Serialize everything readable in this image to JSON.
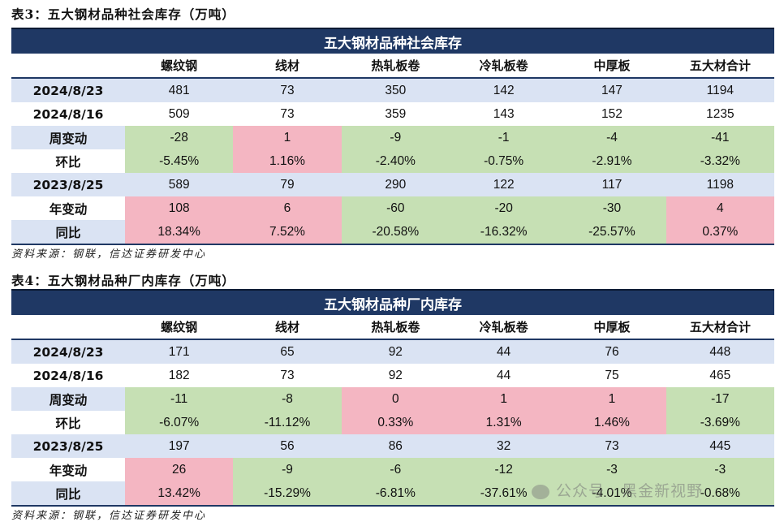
{
  "colors": {
    "header_bg": "#1f3864",
    "label_bg": "#dae3f3",
    "decrease_green": "#c6e0b4",
    "increase_pink": "#f4b6c2"
  },
  "tables": [
    {
      "caption": "表3：五大钢材品种社会库存（万吨）",
      "title": "五大钢材品种社会库存",
      "columns": [
        "",
        "螺纹钢",
        "线材",
        "热轧板卷",
        "冷轧板卷",
        "中厚板",
        "五大材合计"
      ],
      "rows": [
        {
          "label": "2024/8/23",
          "values": [
            "481",
            "73",
            "350",
            "142",
            "147",
            "1194"
          ],
          "colors": [
            "lav",
            "lav",
            "lav",
            "lav",
            "lav",
            "lav"
          ],
          "label_color": "lav"
        },
        {
          "label": "2024/8/16",
          "values": [
            "509",
            "73",
            "359",
            "143",
            "152",
            "1235"
          ],
          "colors": [
            "wht",
            "wht",
            "wht",
            "wht",
            "wht",
            "wht"
          ],
          "label_color": "wht"
        },
        {
          "label": "周变动",
          "values": [
            "-28",
            "1",
            "-9",
            "-1",
            "-4",
            "-41"
          ],
          "colors": [
            "grn",
            "pnk",
            "grn",
            "grn",
            "grn",
            "grn"
          ],
          "label_color": "lav"
        },
        {
          "label": "环比",
          "values": [
            "-5.45%",
            "1.16%",
            "-2.40%",
            "-0.75%",
            "-2.91%",
            "-3.32%"
          ],
          "colors": [
            "grn",
            "pnk",
            "grn",
            "grn",
            "grn",
            "grn"
          ],
          "label_color": "wht"
        },
        {
          "label": "2023/8/25",
          "values": [
            "589",
            "79",
            "290",
            "122",
            "117",
            "1198"
          ],
          "colors": [
            "lav",
            "lav",
            "lav",
            "lav",
            "lav",
            "lav"
          ],
          "label_color": "lav"
        },
        {
          "label": "年变动",
          "values": [
            "108",
            "6",
            "-60",
            "-20",
            "-30",
            "4"
          ],
          "colors": [
            "pnk",
            "pnk",
            "grn",
            "grn",
            "grn",
            "pnk"
          ],
          "label_color": "wht"
        },
        {
          "label": "同比",
          "values": [
            "18.34%",
            "7.52%",
            "-20.58%",
            "-16.32%",
            "-25.57%",
            "0.37%"
          ],
          "colors": [
            "pnk",
            "pnk",
            "grn",
            "grn",
            "grn",
            "pnk"
          ],
          "label_color": "lav"
        }
      ],
      "source": "资料来源：钢联，信达证券研发中心"
    },
    {
      "caption": "表4：五大钢材品种厂内库存（万吨）",
      "title": "五大钢材品种厂内库存",
      "columns": [
        "",
        "螺纹钢",
        "线材",
        "热轧板卷",
        "冷轧板卷",
        "中厚板",
        "五大材合计"
      ],
      "rows": [
        {
          "label": "2024/8/23",
          "values": [
            "171",
            "65",
            "92",
            "44",
            "76",
            "448"
          ],
          "colors": [
            "lav",
            "lav",
            "lav",
            "lav",
            "lav",
            "lav"
          ],
          "label_color": "lav"
        },
        {
          "label": "2024/8/16",
          "values": [
            "182",
            "73",
            "92",
            "44",
            "75",
            "465"
          ],
          "colors": [
            "wht",
            "wht",
            "wht",
            "wht",
            "wht",
            "wht"
          ],
          "label_color": "wht"
        },
        {
          "label": "周变动",
          "values": [
            "-11",
            "-8",
            "0",
            "1",
            "1",
            "-17"
          ],
          "colors": [
            "grn",
            "grn",
            "pnk",
            "pnk",
            "pnk",
            "grn"
          ],
          "label_color": "lav"
        },
        {
          "label": "环比",
          "values": [
            "-6.07%",
            "-11.12%",
            "0.33%",
            "1.31%",
            "1.46%",
            "-3.69%"
          ],
          "colors": [
            "grn",
            "grn",
            "pnk",
            "pnk",
            "pnk",
            "grn"
          ],
          "label_color": "wht"
        },
        {
          "label": "2023/8/25",
          "values": [
            "197",
            "56",
            "86",
            "32",
            "73",
            "445"
          ],
          "colors": [
            "lav",
            "lav",
            "lav",
            "lav",
            "lav",
            "lav"
          ],
          "label_color": "lav"
        },
        {
          "label": "年变动",
          "values": [
            "26",
            "-9",
            "-6",
            "-12",
            "-3",
            "-3"
          ],
          "colors": [
            "pnk",
            "grn",
            "grn",
            "grn",
            "grn",
            "grn"
          ],
          "label_color": "wht"
        },
        {
          "label": "同比",
          "values": [
            "13.42%",
            "-15.29%",
            "-6.81%",
            "-37.61%",
            "-4.01%",
            "-0.68%"
          ],
          "colors": [
            "pnk",
            "grn",
            "grn",
            "grn",
            "grn",
            "grn"
          ],
          "label_color": "lav"
        }
      ],
      "source": "资料来源：钢联，信达证券研发中心"
    }
  ],
  "watermark": "公众号 · 黑金新视野"
}
